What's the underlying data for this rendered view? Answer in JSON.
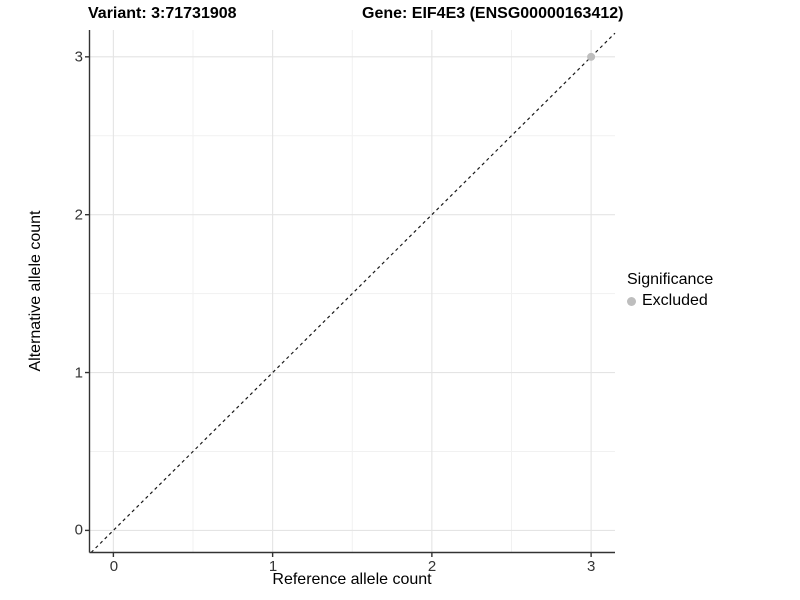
{
  "titles": {
    "variant": "Variant: 3:71731908",
    "gene": "Gene: EIF4E3 (ENSG00000163412)"
  },
  "chart_data": {
    "type": "scatter",
    "title_left": "Variant: 3:71731908",
    "title_right": "Gene: EIF4E3 (ENSG00000163412)",
    "xlabel": "Reference allele count",
    "ylabel": "Alternative allele count",
    "x_ticks": [
      0,
      1,
      2,
      3
    ],
    "y_ticks": [
      0,
      1,
      2,
      3
    ],
    "x_tick_labels": [
      "0",
      "1",
      "2",
      "3"
    ],
    "y_tick_labels": [
      "0",
      "1",
      "2",
      "3"
    ],
    "xlim": [
      -0.15,
      3.15
    ],
    "ylim": [
      -0.14,
      3.17
    ],
    "grid": "major-and-minor",
    "reference_line": {
      "equation": "y = x",
      "style": "dashed",
      "color": "#1a1a1a"
    },
    "points": [
      {
        "x": 3,
        "y": 3,
        "significance": "Excluded",
        "color": "#bebebe",
        "radius": 4
      }
    ],
    "legend": {
      "position": "right",
      "title": "Significance",
      "entries": [
        {
          "label": "Excluded",
          "color": "#bebebe"
        }
      ]
    },
    "colors": {
      "major_grid": "#e4e4e4",
      "minor_grid": "#f1f1f1",
      "axis_line": "#333333",
      "background": "#ffffff"
    }
  }
}
